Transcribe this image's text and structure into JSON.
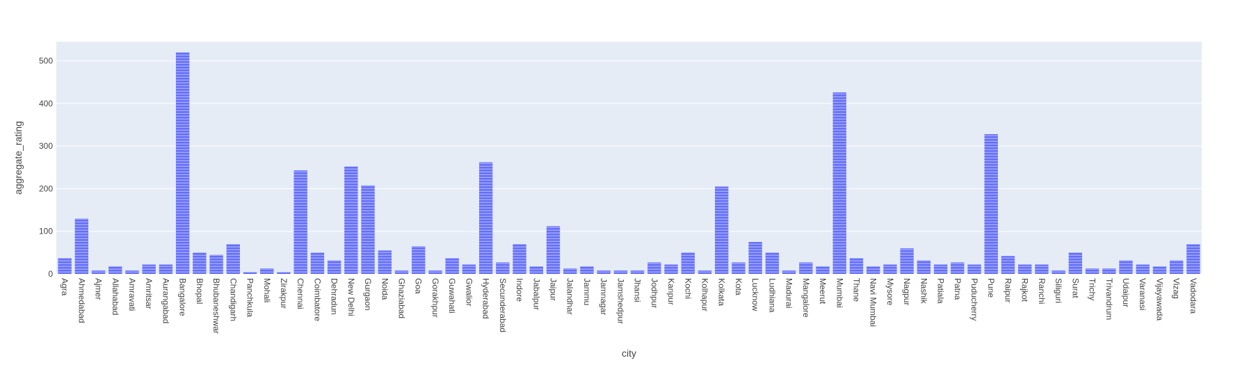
{
  "colors": {
    "plot_background": "#e5ecf6",
    "gridline": "#ffffff",
    "bar_fill": "#636efa",
    "bar_stripe": "#ffffff",
    "text": "#444444"
  },
  "chart_data": {
    "type": "bar",
    "xlabel": "city",
    "ylabel": "aggregate_rating",
    "ylim": [
      0,
      545
    ],
    "yticks": [
      0,
      100,
      200,
      300,
      400,
      500
    ],
    "grid": true,
    "bar_pattern": "horizontal-stripes",
    "categories": [
      "Agra",
      "Ahmedabad",
      "Ajmer",
      "Allahabad",
      "Amravati",
      "Amritsar",
      "Aurangabad",
      "Bangalore",
      "Bhopal",
      "Bhubaneshwar",
      "Chandigarh",
      "Panchkula",
      "Mohali",
      "Zirakpur",
      "Chennai",
      "Coimbatore",
      "Dehradun",
      "New Delhi",
      "Gurgaon",
      "Noida",
      "Ghaziabad",
      "Goa",
      "Gorakhpur",
      "Guwahati",
      "Gwalior",
      "Hyderabad",
      "Secunderabad",
      "Indore",
      "Jabalpur",
      "Jaipur",
      "Jalandhar",
      "Jammu",
      "Jamnagar",
      "Jamshedpur",
      "Jhansi",
      "Jodhpur",
      "Kanpur",
      "Kochi",
      "Kolhapur",
      "Kolkata",
      "Kota",
      "Lucknow",
      "Ludhiana",
      "Madurai",
      "Mangalore",
      "Meerut",
      "Mumbai",
      "Thane",
      "Navi Mumbai",
      "Mysore",
      "Nagpur",
      "Nashik",
      "Patiala",
      "Patna",
      "Puducherry",
      "Pune",
      "Raipur",
      "Rajkot",
      "Ranchi",
      "Siliguri",
      "Surat",
      "Trichy",
      "Trivandrum",
      "Udaipur",
      "Varanasi",
      "Vijayawada",
      "Vizag",
      "Vadodara"
    ],
    "values": [
      37,
      130,
      8,
      18,
      8,
      22,
      22,
      520,
      50,
      45,
      70,
      4,
      13,
      4,
      243,
      50,
      32,
      252,
      208,
      55,
      8,
      65,
      8,
      37,
      22,
      262,
      27,
      70,
      18,
      112,
      13,
      18,
      8,
      8,
      8,
      27,
      22,
      50,
      8,
      205,
      27,
      75,
      50,
      8,
      27,
      18,
      426,
      37,
      18,
      22,
      60,
      32,
      22,
      27,
      22,
      328,
      42,
      22,
      22,
      8,
      50,
      13,
      13,
      32,
      22,
      18,
      32,
      70
    ]
  }
}
